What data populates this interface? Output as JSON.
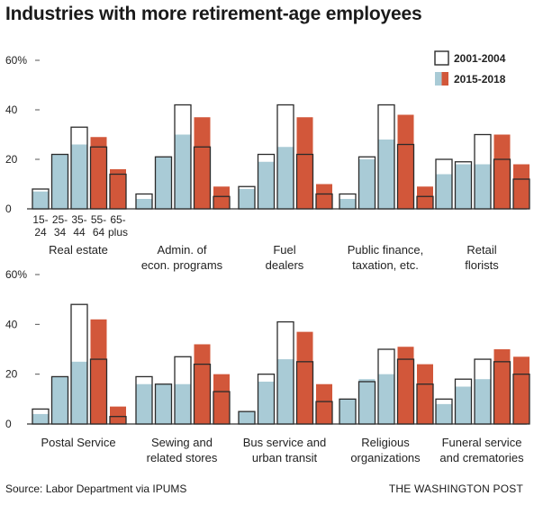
{
  "title": "Industries with more retirement-age employees",
  "source": "Source: Labor Department via IPUMS",
  "credit": "THE WASHINGTON POST",
  "legend": [
    {
      "label": "2001-2004",
      "kind": "outline"
    },
    {
      "label": "2015-2018",
      "kind": "filled"
    }
  ],
  "colors": {
    "young_2015_2018": "#a9cbd6",
    "old_2015_2018": "#d2573a",
    "outline": "#2b2b2b"
  },
  "chart_data": {
    "type": "bar",
    "age_groups": [
      "15-24",
      "25-34",
      "35-44",
      "55-64",
      "65-plus"
    ],
    "age_group_labels": [
      [
        "15-",
        "24"
      ],
      [
        "25-",
        "34"
      ],
      [
        "35-",
        "44"
      ],
      [
        "55-",
        "64"
      ],
      [
        "65-",
        "plus"
      ]
    ],
    "y_ticks": [
      "0",
      "20",
      "40",
      "60%"
    ],
    "ylim": [
      0,
      60
    ],
    "series_names": [
      "2001-2004",
      "2015-2018"
    ],
    "panels": [
      {
        "industry": [
          "Real estate"
        ],
        "values_2001_2004": [
          8,
          22,
          33,
          25,
          14
        ],
        "values_2015_2018": [
          7,
          22,
          26,
          29,
          16
        ]
      },
      {
        "industry": [
          "Admin. of",
          "econ. programs"
        ],
        "values_2001_2004": [
          6,
          21,
          42,
          25,
          5
        ],
        "values_2015_2018": [
          4,
          21,
          30,
          37,
          9
        ]
      },
      {
        "industry": [
          "Fuel",
          "dealers"
        ],
        "values_2001_2004": [
          9,
          22,
          42,
          22,
          6
        ],
        "values_2015_2018": [
          8,
          19,
          25,
          37,
          10
        ]
      },
      {
        "industry": [
          "Public finance,",
          "taxation, etc."
        ],
        "values_2001_2004": [
          6,
          21,
          42,
          26,
          5
        ],
        "values_2015_2018": [
          4,
          20,
          28,
          38,
          9
        ]
      },
      {
        "industry": [
          "Retail",
          "florists"
        ],
        "values_2001_2004": [
          20,
          19,
          30,
          20,
          12
        ],
        "values_2015_2018": [
          14,
          18,
          18,
          30,
          18
        ]
      },
      {
        "industry": [
          "Postal Service"
        ],
        "values_2001_2004": [
          6,
          19,
          48,
          26,
          3
        ],
        "values_2015_2018": [
          4,
          19,
          25,
          42,
          7
        ]
      },
      {
        "industry": [
          "Sewing and",
          "related stores"
        ],
        "values_2001_2004": [
          19,
          16,
          27,
          24,
          13
        ],
        "values_2015_2018": [
          16,
          16,
          16,
          32,
          20
        ]
      },
      {
        "industry": [
          "Bus service and",
          "urban transit"
        ],
        "values_2001_2004": [
          5,
          20,
          41,
          25,
          9
        ],
        "values_2015_2018": [
          5,
          17,
          26,
          37,
          16
        ]
      },
      {
        "industry": [
          "Religious",
          "organizations"
        ],
        "values_2001_2004": [
          10,
          17,
          30,
          26,
          16
        ],
        "values_2015_2018": [
          10,
          18,
          20,
          31,
          24
        ]
      },
      {
        "industry": [
          "Funeral service",
          "and crematories"
        ],
        "values_2001_2004": [
          10,
          18,
          26,
          25,
          20
        ],
        "values_2015_2018": [
          8,
          15,
          18,
          30,
          27
        ]
      }
    ]
  }
}
